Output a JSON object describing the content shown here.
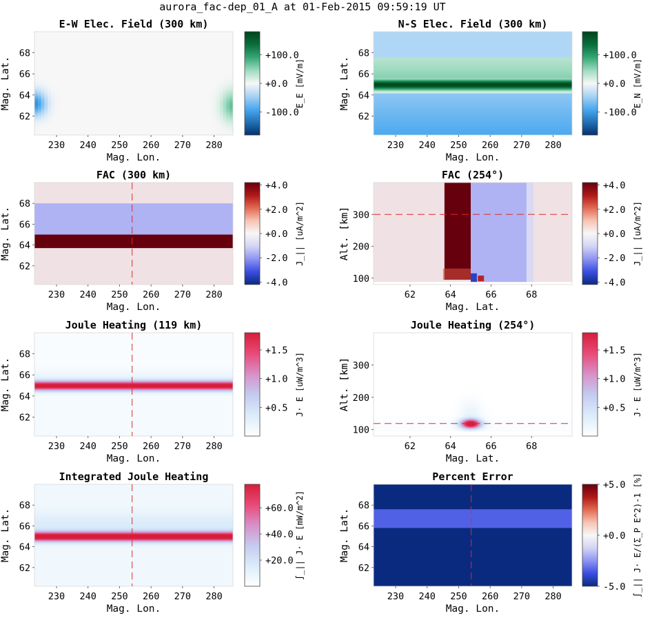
{
  "suptitle": "aurora_fac-dep_01_A at 01-Feb-2015 09:59:19 UT",
  "colors": {
    "diverging_green": [
      "#08306b",
      "#2171b5",
      "#4aa8ef",
      "#a8d2f5",
      "#f7f7f7",
      "#9ddbc0",
      "#35a775",
      "#0a6e3c",
      "#00441b"
    ],
    "diverging_red": [
      "#0a2a80",
      "#3a4de0",
      "#8d94f2",
      "#d4d4f4",
      "#f7f7f7",
      "#f6c4b4",
      "#e26a52",
      "#b01818",
      "#67000d"
    ],
    "sequential_red": [
      "#ffffff",
      "#dbecfa",
      "#c4cbf0",
      "#d890c8",
      "#e84a78",
      "#d61e3a"
    ],
    "refline": "#dc2a2a",
    "background_fac": "#f0e2e4"
  },
  "chart_data": [
    {
      "type": "heatmap",
      "title": "E-W Elec. Field (300 km)",
      "xlabel": "Mag. Lon.",
      "ylabel": "Mag. Lat.",
      "xlim": [
        223,
        286
      ],
      "ylim": [
        60.2,
        70
      ],
      "xticks": [
        230,
        240,
        250,
        260,
        270,
        280
      ],
      "yticks": [
        62,
        64,
        66,
        68
      ],
      "show_xticks": true,
      "colorbar": {
        "label": "E_E [mV/m]",
        "ticks": [
          "+100.0",
          "+0.0",
          "-100.0"
        ],
        "ticks_values": [
          100,
          0,
          -100
        ],
        "range": [
          -180,
          180
        ],
        "cmap": "diverging_green"
      },
      "features": "near-zero field; weak negative patch at west edge lat 62-64.5, weak positive patch at east edge lat 61.5-64.5",
      "refline": null
    },
    {
      "type": "heatmap",
      "title": "N-S Elec. Field (300 km)",
      "xlabel": "Mag. Lon.",
      "ylabel": "Mag. Lat.",
      "xlim": [
        223,
        286
      ],
      "ylim": [
        60.2,
        70
      ],
      "xticks": [
        230,
        240,
        250,
        260,
        270,
        280
      ],
      "yticks": [
        62,
        64,
        66,
        68
      ],
      "show_xticks": true,
      "colorbar": {
        "label": "E_N [mV/m]",
        "ticks": [
          "+100.0",
          "+0.0",
          "-100.0"
        ],
        "ticks_values": [
          100,
          0,
          -100
        ],
        "range": [
          -180,
          180
        ],
        "cmap": "diverging_green"
      },
      "features": "strong positive band at lat 64.5-65.5; moderate positive lat 65.5-67.5; negative below 64",
      "refline": null
    },
    {
      "type": "heatmap",
      "title": "FAC (300 km)",
      "xlabel": "Mag. Lon.",
      "ylabel": "Mag. Lat.",
      "xlim": [
        223,
        286
      ],
      "ylim": [
        60.2,
        70
      ],
      "xticks": [
        230,
        240,
        250,
        260,
        270,
        280
      ],
      "yticks": [
        62,
        64,
        66,
        68
      ],
      "show_xticks": true,
      "colorbar": {
        "label": "J_|| [uA/m^2]",
        "ticks": [
          "+4.0",
          "+2.0",
          "+0.0",
          "-2.0",
          "-4.0"
        ],
        "ticks_values": [
          4,
          2,
          0,
          -2,
          -4
        ],
        "range": [
          -4.2,
          4.2
        ],
        "cmap": "diverging_red"
      },
      "bands": [
        {
          "lat": [
            63.7,
            65.0
          ],
          "value": 4.2
        },
        {
          "lat": [
            65.0,
            68.0
          ],
          "value": -1.6
        }
      ],
      "refline": {
        "orientation": "vertical",
        "value": 254
      }
    },
    {
      "type": "heatmap",
      "title": "FAC (254°)",
      "xlabel": "Mag. Lat.",
      "ylabel": "Alt. [km]",
      "xlim": [
        60.2,
        70
      ],
      "ylim": [
        80,
        400
      ],
      "xticks": [
        62,
        64,
        66,
        68
      ],
      "yticks": [
        100,
        200,
        300
      ],
      "show_xticks": true,
      "colorbar": {
        "label": "J_|| [uA/m^2]",
        "ticks": [
          "+4.0",
          "+2.0",
          "+0.0",
          "-2.0",
          "-4.0"
        ],
        "ticks_values": [
          4,
          2,
          0,
          -2,
          -4
        ],
        "range": [
          -4.2,
          4.2
        ],
        "cmap": "diverging_red"
      },
      "bands": [
        {
          "lat": [
            63.7,
            65.0
          ],
          "alt": [
            95,
            400
          ],
          "value": 4.2
        },
        {
          "lat": [
            65.0,
            68.0
          ],
          "alt": [
            85,
            400
          ],
          "value": -1.6
        }
      ],
      "refline": {
        "orientation": "horizontal",
        "value": 300
      }
    },
    {
      "type": "heatmap",
      "title": "Joule Heating (119 km)",
      "xlabel": "Mag. Lon.",
      "ylabel": "Mag. Lat.",
      "xlim": [
        223,
        286
      ],
      "ylim": [
        60.2,
        70
      ],
      "xticks": [
        230,
        240,
        250,
        260,
        270,
        280
      ],
      "yticks": [
        62,
        64,
        66,
        68
      ],
      "show_xticks": true,
      "colorbar": {
        "label": "J· E [uW/m^3]",
        "ticks": [
          "+1.5",
          "+1.0",
          "+0.5"
        ],
        "ticks_values": [
          1.5,
          1.0,
          0.5
        ],
        "range": [
          0,
          1.8
        ],
        "cmap": "sequential_red"
      },
      "features": "peak band lat 64.6-65.4 (~1.8 uW/m3); weak background elsewhere",
      "refline": {
        "orientation": "vertical",
        "value": 254
      }
    },
    {
      "type": "heatmap",
      "title": "Joule Heating (254°)",
      "xlabel": "Mag. Lat.",
      "ylabel": "Alt. [km]",
      "xlim": [
        60.2,
        70
      ],
      "ylim": [
        80,
        400
      ],
      "xticks": [
        62,
        64,
        66,
        68
      ],
      "yticks": [
        100,
        200,
        300
      ],
      "show_xticks": true,
      "colorbar": {
        "label": "J· E [uW/m^3]",
        "ticks": [
          "+1.5",
          "+1.0",
          "+0.5"
        ],
        "ticks_values": [
          1.5,
          1.0,
          0.5
        ],
        "range": [
          0,
          1.8
        ],
        "cmap": "sequential_red"
      },
      "features": "localized peak at lat ~65, alt ~119 km",
      "refline": {
        "orientation": "horizontal",
        "value": 119
      }
    },
    {
      "type": "heatmap",
      "title": "Integrated Joule Heating",
      "xlabel": "Mag. Lon.",
      "ylabel": "Mag. Lat.",
      "xlim": [
        223,
        286
      ],
      "ylim": [
        60.2,
        70
      ],
      "xticks": [
        230,
        240,
        250,
        260,
        270,
        280
      ],
      "yticks": [
        62,
        64,
        66,
        68
      ],
      "show_xticks": true,
      "colorbar": {
        "label": "∫_|| J· E [mW/m^2]",
        "ticks": [
          "+60.0",
          "+40.0",
          "+20.0"
        ],
        "ticks_values": [
          60,
          40,
          20
        ],
        "range": [
          0,
          78
        ],
        "cmap": "sequential_red"
      },
      "features": "peak band lat 64.7-65.3; broad weak background",
      "refline": {
        "orientation": "vertical",
        "value": 254
      }
    },
    {
      "type": "heatmap",
      "title": "Percent Error",
      "xlabel": "Mag. Lon.",
      "ylabel": "Mag. Lat.",
      "xlim": [
        223,
        286
      ],
      "ylim": [
        60.2,
        70
      ],
      "xticks": [
        230,
        240,
        250,
        260,
        270,
        280
      ],
      "yticks": [
        62,
        64,
        66,
        68
      ],
      "show_xticks": true,
      "colorbar": {
        "label": "∫_|| J· E/(Σ_P E^2)-1 [%]",
        "ticks": [
          "+5.0",
          "+0.0",
          "-5.0"
        ],
        "ticks_values": [
          5,
          0,
          -5
        ],
        "range": [
          -5,
          5
        ],
        "cmap": "diverging_red"
      },
      "bands": [
        {
          "lat": [
            60.2,
            70
          ],
          "value": -5
        },
        {
          "lat": [
            65.8,
            67.6
          ],
          "value": -3.4
        }
      ],
      "refline": {
        "orientation": "vertical",
        "value": 254
      }
    }
  ]
}
